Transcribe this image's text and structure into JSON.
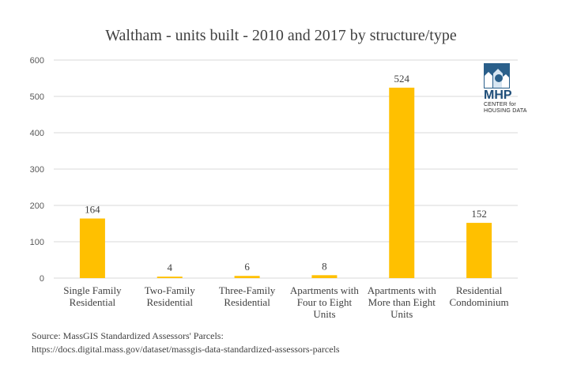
{
  "chart_data": {
    "type": "bar",
    "title": "Waltham - units built - 2010 and 2017 by structure/type",
    "categories": [
      [
        "Single Family",
        "Residential"
      ],
      [
        "Two-Family",
        "Residential"
      ],
      [
        "Three-Family",
        "Residential"
      ],
      [
        "Apartments with",
        "Four to Eight",
        "Units"
      ],
      [
        "Apartments with",
        "More than Eight",
        "Units"
      ],
      [
        "Residential",
        "Condominium"
      ]
    ],
    "values": [
      164,
      4,
      6,
      8,
      524,
      152
    ],
    "data_labels": [
      "164",
      "4",
      "6",
      "8",
      "524",
      "152"
    ],
    "ylim": [
      0,
      600
    ],
    "yticks": [
      0,
      100,
      200,
      300,
      400,
      500,
      600
    ],
    "grid": true,
    "bar_color": "#ffc000",
    "grid_color": "#d9d9d9"
  },
  "source": {
    "line1": "Source: MassGIS Standardized Assessors' Parcels:",
    "line2": "https://docs.digital.mass.gov/dataset/massgis-data-standardized-assessors-parcels"
  },
  "logo": {
    "name": "MHP",
    "sub1": "CENTER for",
    "sub2": "HOUSING DATA"
  }
}
